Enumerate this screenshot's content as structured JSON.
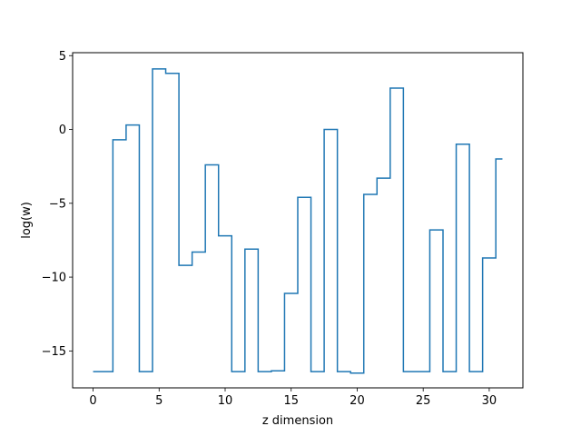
{
  "chart_data": {
    "type": "line",
    "drawstyle": "steps-mid",
    "title": "",
    "xlabel": "z dimension",
    "ylabel": "log(w)",
    "xlim": [
      -1.55,
      32.55
    ],
    "ylim": [
      -17.5,
      5.2
    ],
    "xticks": [
      0,
      5,
      10,
      15,
      20,
      25,
      30
    ],
    "yticks": [
      5,
      0,
      -5,
      -10,
      -15
    ],
    "grid": false,
    "legend": "none",
    "series": [
      {
        "color": "#1f77b4",
        "x": [
          0,
          1,
          2,
          3,
          4,
          5,
          6,
          7,
          8,
          9,
          10,
          11,
          12,
          13,
          14,
          15,
          16,
          17,
          18,
          19,
          20,
          21,
          22,
          23,
          24,
          25,
          26,
          27,
          28,
          29,
          30,
          31
        ],
        "y": [
          -16.4,
          -16.4,
          -0.7,
          0.3,
          -16.4,
          4.1,
          3.8,
          -9.2,
          -8.3,
          -2.4,
          -7.2,
          -16.4,
          -8.1,
          -16.4,
          -16.35,
          -11.1,
          -4.6,
          -16.4,
          0.0,
          -16.4,
          -16.5,
          -4.4,
          -3.3,
          2.8,
          -16.4,
          -16.4,
          -6.8,
          -16.4,
          -1.0,
          -16.4,
          -8.7,
          -2.0
        ]
      }
    ]
  }
}
